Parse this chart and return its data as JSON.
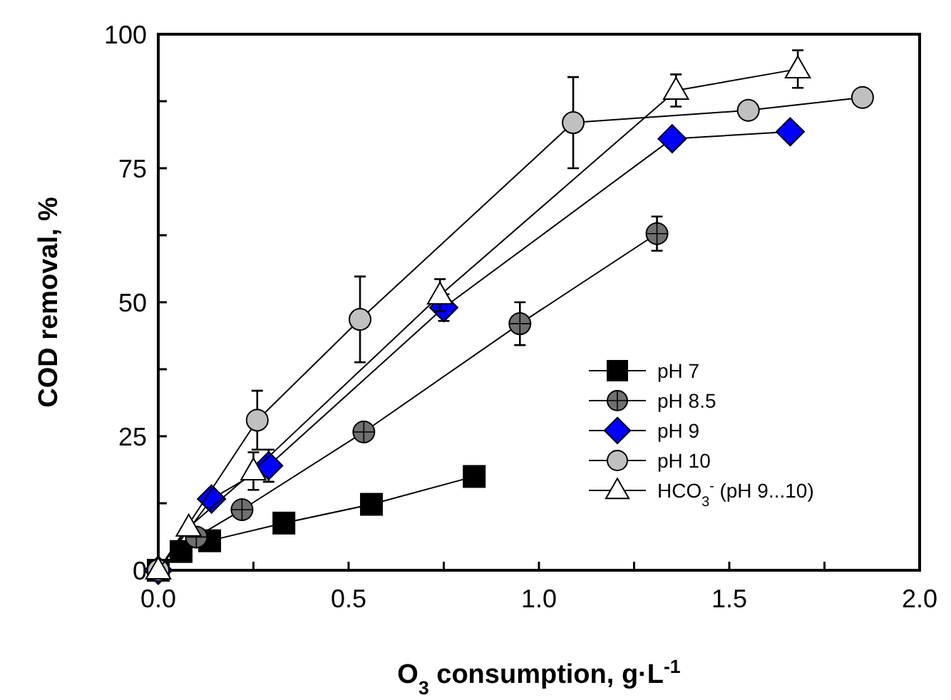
{
  "chart_data": {
    "type": "line",
    "xlabel": "O$_{3}$ consumption, g·L$^{-1}$",
    "ylabel": "COD removal, %",
    "xlim": [
      0,
      2
    ],
    "xticks": [
      {
        "value": 0,
        "label": "0.0"
      },
      {
        "value": 0.25,
        "label": null
      },
      {
        "value": 0.5,
        "label": "0.5"
      },
      {
        "value": 0.75,
        "label": null
      },
      {
        "value": 1,
        "label": "1.0"
      },
      {
        "value": 1.25,
        "label": null
      },
      {
        "value": 1.5,
        "label": "1.5"
      },
      {
        "value": 1.75,
        "label": null
      },
      {
        "value": 2,
        "label": "2.0"
      }
    ],
    "ylim": [
      0,
      100
    ],
    "yticks": [
      0,
      {
        "value": 12.5,
        "label": null
      },
      25,
      {
        "value": 37.5,
        "label": null
      },
      50,
      {
        "value": 62.5,
        "label": null
      },
      75,
      {
        "value": 87.5,
        "label": null
      },
      100
    ],
    "grid": false,
    "legend": "bottom right",
    "series": [
      {
        "name": "pH 7",
        "color": "#000000",
        "marker": "square",
        "x": [
          0,
          0.06,
          0.135,
          0.33,
          0.56,
          0.83
        ],
        "values": [
          0,
          3.5,
          5.5,
          8.8,
          12.3,
          17.5
        ]
      },
      {
        "name": "pH 8.5",
        "color": "#707070",
        "marker": "circle",
        "x": [
          0,
          0.1,
          0.22,
          0.54,
          0.95,
          1.31
        ],
        "values": [
          0,
          6.2,
          11.3,
          25.8,
          46,
          62.8
        ],
        "errors": [
          null,
          null,
          null,
          null,
          4,
          3.2
        ]
      },
      {
        "name": "pH 9",
        "color": "#0000ff",
        "marker": "diamond",
        "x": [
          0,
          0.14,
          0.29,
          0.75,
          1.35,
          1.66
        ],
        "values": [
          0,
          13.3,
          19.5,
          49,
          80.5,
          81.8
        ],
        "errors": [
          null,
          null,
          3,
          2.5,
          null,
          null
        ]
      },
      {
        "name": "pH 10",
        "color": "#c0c0c0",
        "marker": "circle",
        "x": [
          0,
          0.26,
          0.53,
          1.09,
          1.55,
          1.85
        ],
        "values": [
          0,
          28,
          46.8,
          83.5,
          85.8,
          88.2
        ],
        "errors": [
          null,
          5.5,
          8,
          8.5,
          null,
          null
        ]
      },
      {
        "name": "HCO$_{3}$$^{-}$ (pH 9...10)",
        "color": "#ffffff",
        "marker": "triangle",
        "x": [
          0,
          0.08,
          0.25,
          0.74,
          1.36,
          1.68
        ],
        "values": [
          0,
          8,
          18.5,
          51.3,
          89.5,
          93.5
        ],
        "errors": [
          null,
          null,
          3.5,
          3,
          3,
          3.5
        ]
      }
    ]
  }
}
